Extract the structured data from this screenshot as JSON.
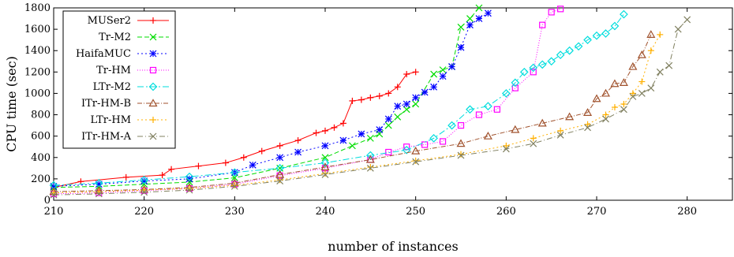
{
  "chart_data": {
    "type": "line",
    "xlabel": "number of instances",
    "ylabel": "CPU time (sec)",
    "xlim": [
      210,
      285
    ],
    "ylim": [
      0,
      1800
    ],
    "xticks": [
      "210",
      "220",
      "230",
      "240",
      "250",
      "260",
      "270",
      "280"
    ],
    "yticks": [
      "0",
      "200",
      "400",
      "600",
      "800",
      "1000",
      "1200",
      "1400",
      "1600",
      "1800"
    ],
    "grid": false,
    "legend_position": "top-left",
    "series": [
      {
        "name": "MUSer2",
        "color": "#ff0000",
        "marker": "plus",
        "dash": "",
        "x": [
          210,
          213,
          218,
          222,
          223,
          226,
          229,
          231,
          233,
          235,
          237,
          239,
          240,
          241,
          242,
          243,
          244,
          245,
          246,
          247,
          248,
          249,
          250
        ],
        "y": [
          120,
          175,
          215,
          235,
          290,
          320,
          350,
          400,
          460,
          510,
          560,
          630,
          650,
          680,
          720,
          930,
          940,
          960,
          975,
          1000,
          1060,
          1180,
          1200
        ]
      },
      {
        "name": "Tr-M2",
        "color": "#00dd00",
        "marker": "x",
        "dash": "6 3",
        "x": [
          210,
          215,
          220,
          225,
          230,
          235,
          240,
          243,
          245,
          246,
          247,
          248,
          249,
          250,
          252,
          253,
          254,
          255,
          256,
          257
        ],
        "y": [
          120,
          130,
          150,
          170,
          210,
          300,
          400,
          510,
          580,
          620,
          700,
          780,
          850,
          900,
          1180,
          1220,
          1250,
          1620,
          1700,
          1800
        ]
      },
      {
        "name": "HaifaMUC",
        "color": "#0000ff",
        "marker": "star",
        "dash": "2 3",
        "x": [
          210,
          215,
          220,
          225,
          230,
          232,
          235,
          237,
          240,
          242,
          244,
          246,
          247,
          248,
          249,
          250,
          251,
          252,
          253,
          254,
          255,
          256,
          257,
          258
        ],
        "y": [
          130,
          150,
          180,
          200,
          260,
          330,
          400,
          450,
          510,
          560,
          620,
          660,
          760,
          880,
          900,
          960,
          1010,
          1060,
          1160,
          1250,
          1430,
          1640,
          1700,
          1750
        ]
      },
      {
        "name": "Tr-HM",
        "color": "#ff00ff",
        "marker": "square",
        "dash": "1 2",
        "x": [
          210,
          215,
          220,
          225,
          230,
          235,
          240,
          245,
          247,
          249,
          251,
          253,
          255,
          257,
          259,
          261,
          263,
          264,
          265,
          266
        ],
        "y": [
          60,
          70,
          90,
          110,
          150,
          230,
          300,
          380,
          450,
          500,
          520,
          550,
          700,
          800,
          850,
          1050,
          1200,
          1640,
          1760,
          1790
        ]
      },
      {
        "name": "LTr-M2",
        "color": "#00dddd",
        "marker": "diamond",
        "dash": "8 3 2 3",
        "x": [
          210,
          215,
          220,
          225,
          230,
          235,
          240,
          245,
          249,
          252,
          254,
          256,
          258,
          260,
          261,
          262,
          263,
          264,
          265,
          266,
          267,
          268,
          269,
          270,
          271,
          272,
          273
        ],
        "y": [
          140,
          160,
          190,
          220,
          260,
          300,
          350,
          420,
          470,
          580,
          700,
          850,
          880,
          1000,
          1100,
          1200,
          1240,
          1270,
          1300,
          1360,
          1400,
          1440,
          1500,
          1540,
          1560,
          1630,
          1740
        ]
      },
      {
        "name": "ITr-HM-B",
        "color": "#a0522d",
        "marker": "triangle",
        "dash": "6 2 1 2",
        "x": [
          210,
          215,
          220,
          225,
          230,
          235,
          240,
          245,
          250,
          255,
          258,
          261,
          264,
          267,
          269,
          270,
          271,
          272,
          273,
          274,
          275,
          276
        ],
        "y": [
          80,
          90,
          100,
          120,
          160,
          240,
          310,
          380,
          460,
          530,
          600,
          660,
          720,
          780,
          820,
          950,
          1000,
          1090,
          1100,
          1250,
          1360,
          1550
        ]
      },
      {
        "name": "LTr-HM",
        "color": "#ffb000",
        "marker": "plus",
        "dash": "2 3",
        "x": [
          210,
          215,
          220,
          225,
          230,
          235,
          240,
          245,
          250,
          255,
          260,
          263,
          266,
          269,
          271,
          272,
          273,
          274,
          275,
          276,
          277
        ],
        "y": [
          70,
          80,
          95,
          110,
          140,
          190,
          250,
          310,
          370,
          430,
          510,
          580,
          650,
          710,
          800,
          870,
          900,
          1000,
          1110,
          1400,
          1550
        ]
      },
      {
        "name": "ITr-HM-A",
        "color": "#808060",
        "marker": "x",
        "dash": "7 3 1 3",
        "x": [
          210,
          215,
          220,
          225,
          230,
          235,
          240,
          245,
          250,
          255,
          260,
          263,
          266,
          269,
          271,
          273,
          274,
          275,
          276,
          277,
          278,
          279,
          280
        ],
        "y": [
          50,
          60,
          75,
          95,
          130,
          180,
          240,
          300,
          360,
          420,
          480,
          530,
          610,
          680,
          760,
          850,
          970,
          1000,
          1050,
          1200,
          1260,
          1600,
          1690
        ]
      }
    ]
  }
}
